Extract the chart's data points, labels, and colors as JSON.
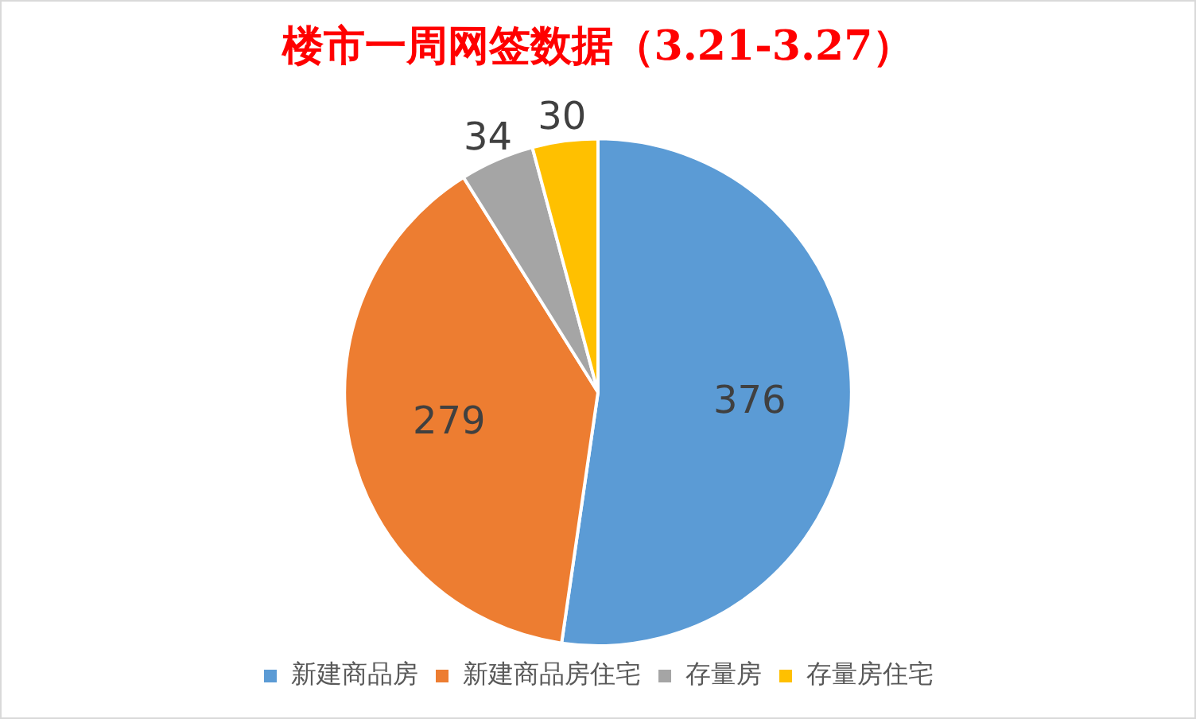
{
  "chart_data": {
    "type": "pie",
    "title": "楼市一周网签数据（3.21-3.27）",
    "categories": [
      "新建商品房",
      "新建商品房住宅",
      "存量房",
      "存量房住宅"
    ],
    "values": [
      376,
      279,
      34,
      30
    ],
    "colors": [
      "#5b9bd5",
      "#ed7d31",
      "#a5a5a5",
      "#ffc000"
    ],
    "data_labels": true,
    "legend": "bottom"
  }
}
